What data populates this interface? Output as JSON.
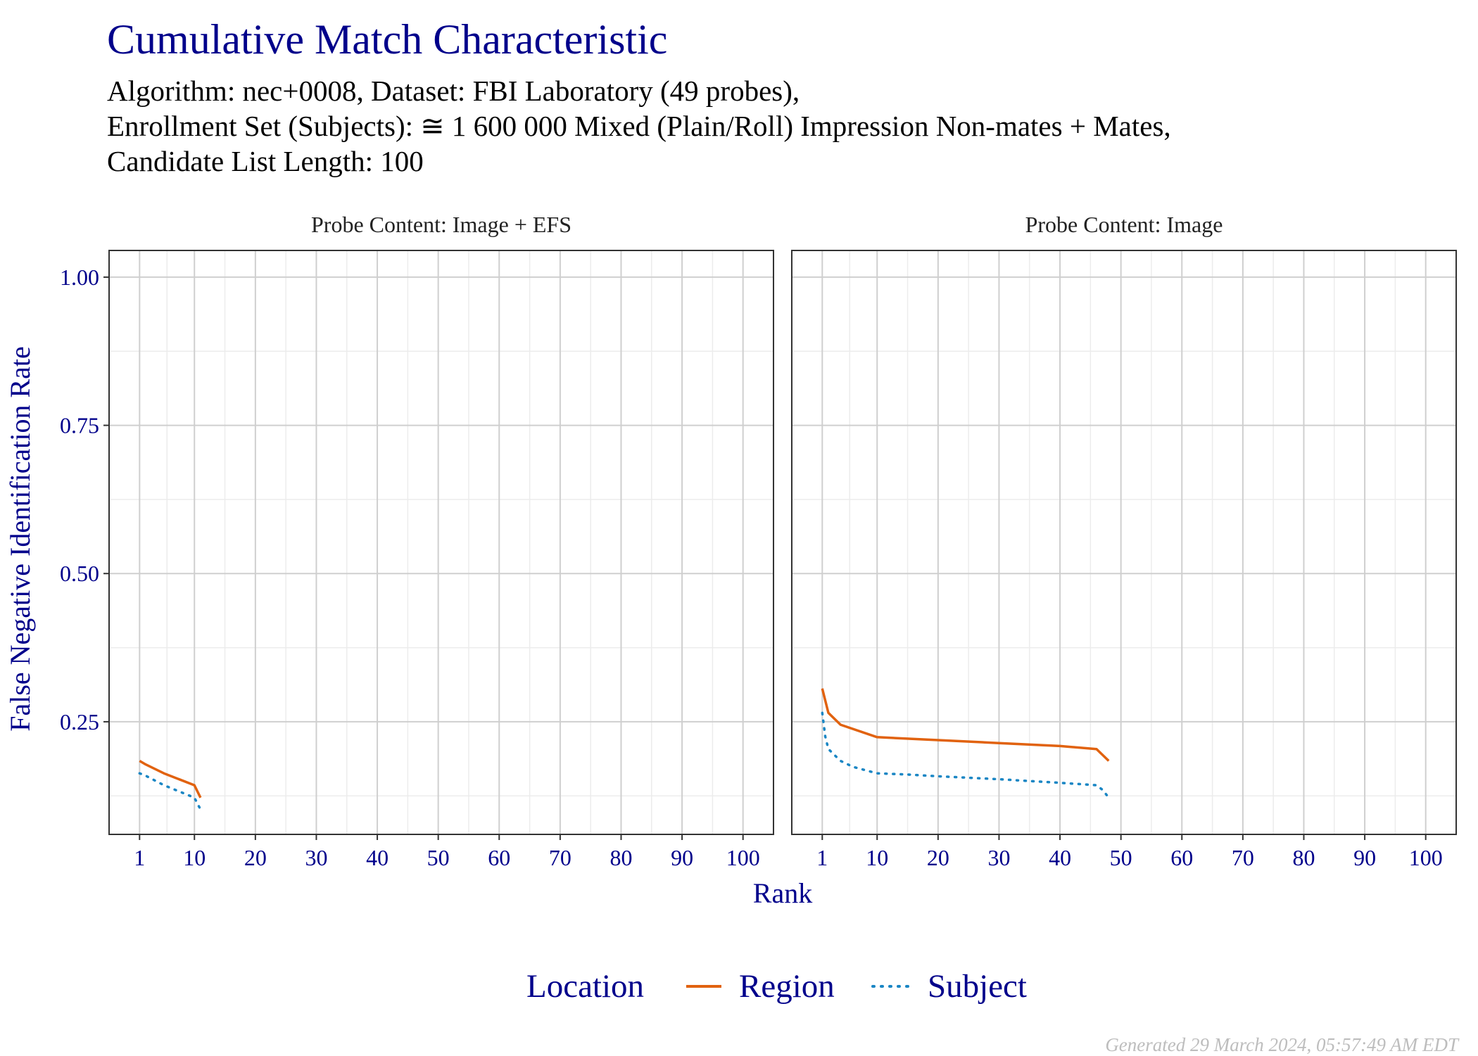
{
  "title": "Cumulative Match Characteristic",
  "subtitle": [
    "Algorithm: nec+0008, Dataset: FBI Laboratory (49 probes),",
    "Enrollment Set (Subjects): ≅ 1 600 000 Mixed (Plain/Roll) Impression Non-mates + Mates,",
    "Candidate List Length: 100"
  ],
  "footer": "Generated 29 March 2024, 05:57:49 AM EDT",
  "colors": {
    "region": "#e1620f",
    "subject": "#1a86c4",
    "axis_text": "#00008b",
    "grid_major": "#cfcfcf",
    "grid_minor": "#ececec"
  },
  "chart_data": {
    "type": "line",
    "xlabel": "Rank",
    "ylabel": "False Negative Identification Rate",
    "x_ticks": [
      1,
      10,
      20,
      30,
      40,
      50,
      60,
      70,
      80,
      90,
      100
    ],
    "y_ticks": [
      0.25,
      0.5,
      0.75,
      1.0
    ],
    "y_tick_labels": [
      "0.25",
      "0.50",
      "0.75",
      "1.00"
    ],
    "xlim": [
      -4,
      105
    ],
    "ylim": [
      0.06,
      1.045
    ],
    "grid": true,
    "legend": {
      "title": "Location",
      "placement": "bottom",
      "entries": [
        {
          "label": "Region",
          "style": "solid",
          "color": "#e1620f"
        },
        {
          "label": "Subject",
          "style": "dotted",
          "color": "#1a86c4"
        }
      ]
    },
    "panels": [
      {
        "title": "Probe Content: Image + EFS",
        "series": [
          {
            "name": "Region",
            "style": "solid",
            "x": [
              1,
              2,
              5,
              10,
              11
            ],
            "y": [
              0.184,
              0.178,
              0.163,
              0.143,
              0.122
            ]
          },
          {
            "name": "Subject",
            "style": "dotted",
            "x": [
              1,
              2,
              5,
              10,
              11
            ],
            "y": [
              0.163,
              0.159,
              0.143,
              0.122,
              0.102
            ]
          }
        ]
      },
      {
        "title": "Probe Content: Image",
        "series": [
          {
            "name": "Region",
            "style": "solid",
            "x": [
              1,
              2,
              4,
              10,
              20,
              30,
              40,
              46,
              48
            ],
            "y": [
              0.306,
              0.265,
              0.245,
              0.224,
              0.219,
              0.214,
              0.209,
              0.204,
              0.184
            ]
          },
          {
            "name": "Subject",
            "style": "dotted",
            "x": [
              1,
              1.5,
              2,
              3,
              4,
              6,
              10,
              15,
              20,
              30,
              40,
              46,
              47,
              48
            ],
            "y": [
              0.265,
              0.225,
              0.204,
              0.194,
              0.184,
              0.174,
              0.163,
              0.161,
              0.158,
              0.153,
              0.147,
              0.143,
              0.135,
              0.122
            ]
          }
        ]
      }
    ]
  }
}
